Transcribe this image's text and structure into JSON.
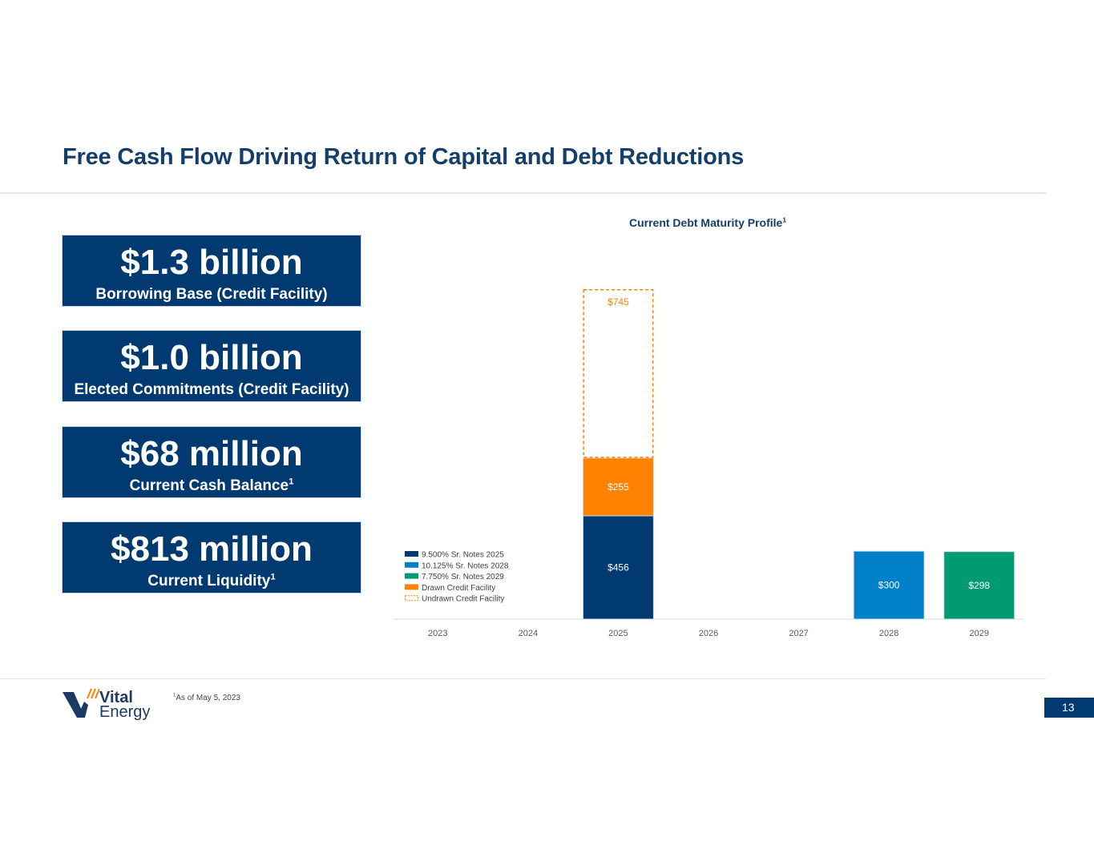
{
  "page": {
    "title": "Free Cash Flow Driving Return of Capital and Debt Reductions",
    "footnote_sup": "1",
    "footnote_text": "As of May 5, 2023",
    "page_number": "13"
  },
  "logo": {
    "line1": "Vital",
    "line2": "Energy"
  },
  "stats": [
    {
      "value": "$1.3 billion",
      "label": "Borrowing Base (Credit Facility)",
      "sup": ""
    },
    {
      "value": "$1.0 billion",
      "label": "Elected Commitments (Credit Facility)",
      "sup": ""
    },
    {
      "value": "$68 million",
      "label": "Current Cash Balance",
      "sup": "1"
    },
    {
      "value": "$813 million",
      "label": "Current Liquidity",
      "sup": "1"
    }
  ],
  "chart_data": {
    "type": "bar",
    "stacked": true,
    "title": "Current Debt Maturity Profile",
    "title_sup": "1",
    "categories": [
      "2023",
      "2024",
      "2025",
      "2026",
      "2027",
      "2028",
      "2029"
    ],
    "series": [
      {
        "name": "9.500% Sr. Notes 2025",
        "color": "#013a70",
        "values": [
          0,
          0,
          456,
          0,
          0,
          0,
          0
        ],
        "labels": [
          "",
          "",
          "$456",
          "",
          "",
          "",
          ""
        ]
      },
      {
        "name": "10.125% Sr. Notes 2028",
        "color": "#0080c8",
        "values": [
          0,
          0,
          0,
          0,
          0,
          300,
          0
        ],
        "labels": [
          "",
          "",
          "",
          "",
          "",
          "$300",
          ""
        ]
      },
      {
        "name": "7.750% Sr. Notes 2029",
        "color": "#009a73",
        "values": [
          0,
          0,
          0,
          0,
          0,
          0,
          298
        ],
        "labels": [
          "",
          "",
          "",
          "",
          "",
          "",
          "$298"
        ]
      },
      {
        "name": "Drawn Credit Facility",
        "color": "#ff8200",
        "values": [
          0,
          0,
          255,
          0,
          0,
          0,
          0
        ],
        "labels": [
          "",
          "",
          "$255",
          "",
          "",
          "",
          ""
        ]
      },
      {
        "name": "Undrawn Credit Facility",
        "color": "#ff8200",
        "dashed": true,
        "values": [
          0,
          0,
          745,
          0,
          0,
          0,
          0
        ],
        "labels": [
          "",
          "",
          "$745",
          "",
          "",
          "",
          ""
        ]
      }
    ],
    "ylim": [
      0,
      1456
    ],
    "legend_position": "bottom-left",
    "grid": false
  }
}
